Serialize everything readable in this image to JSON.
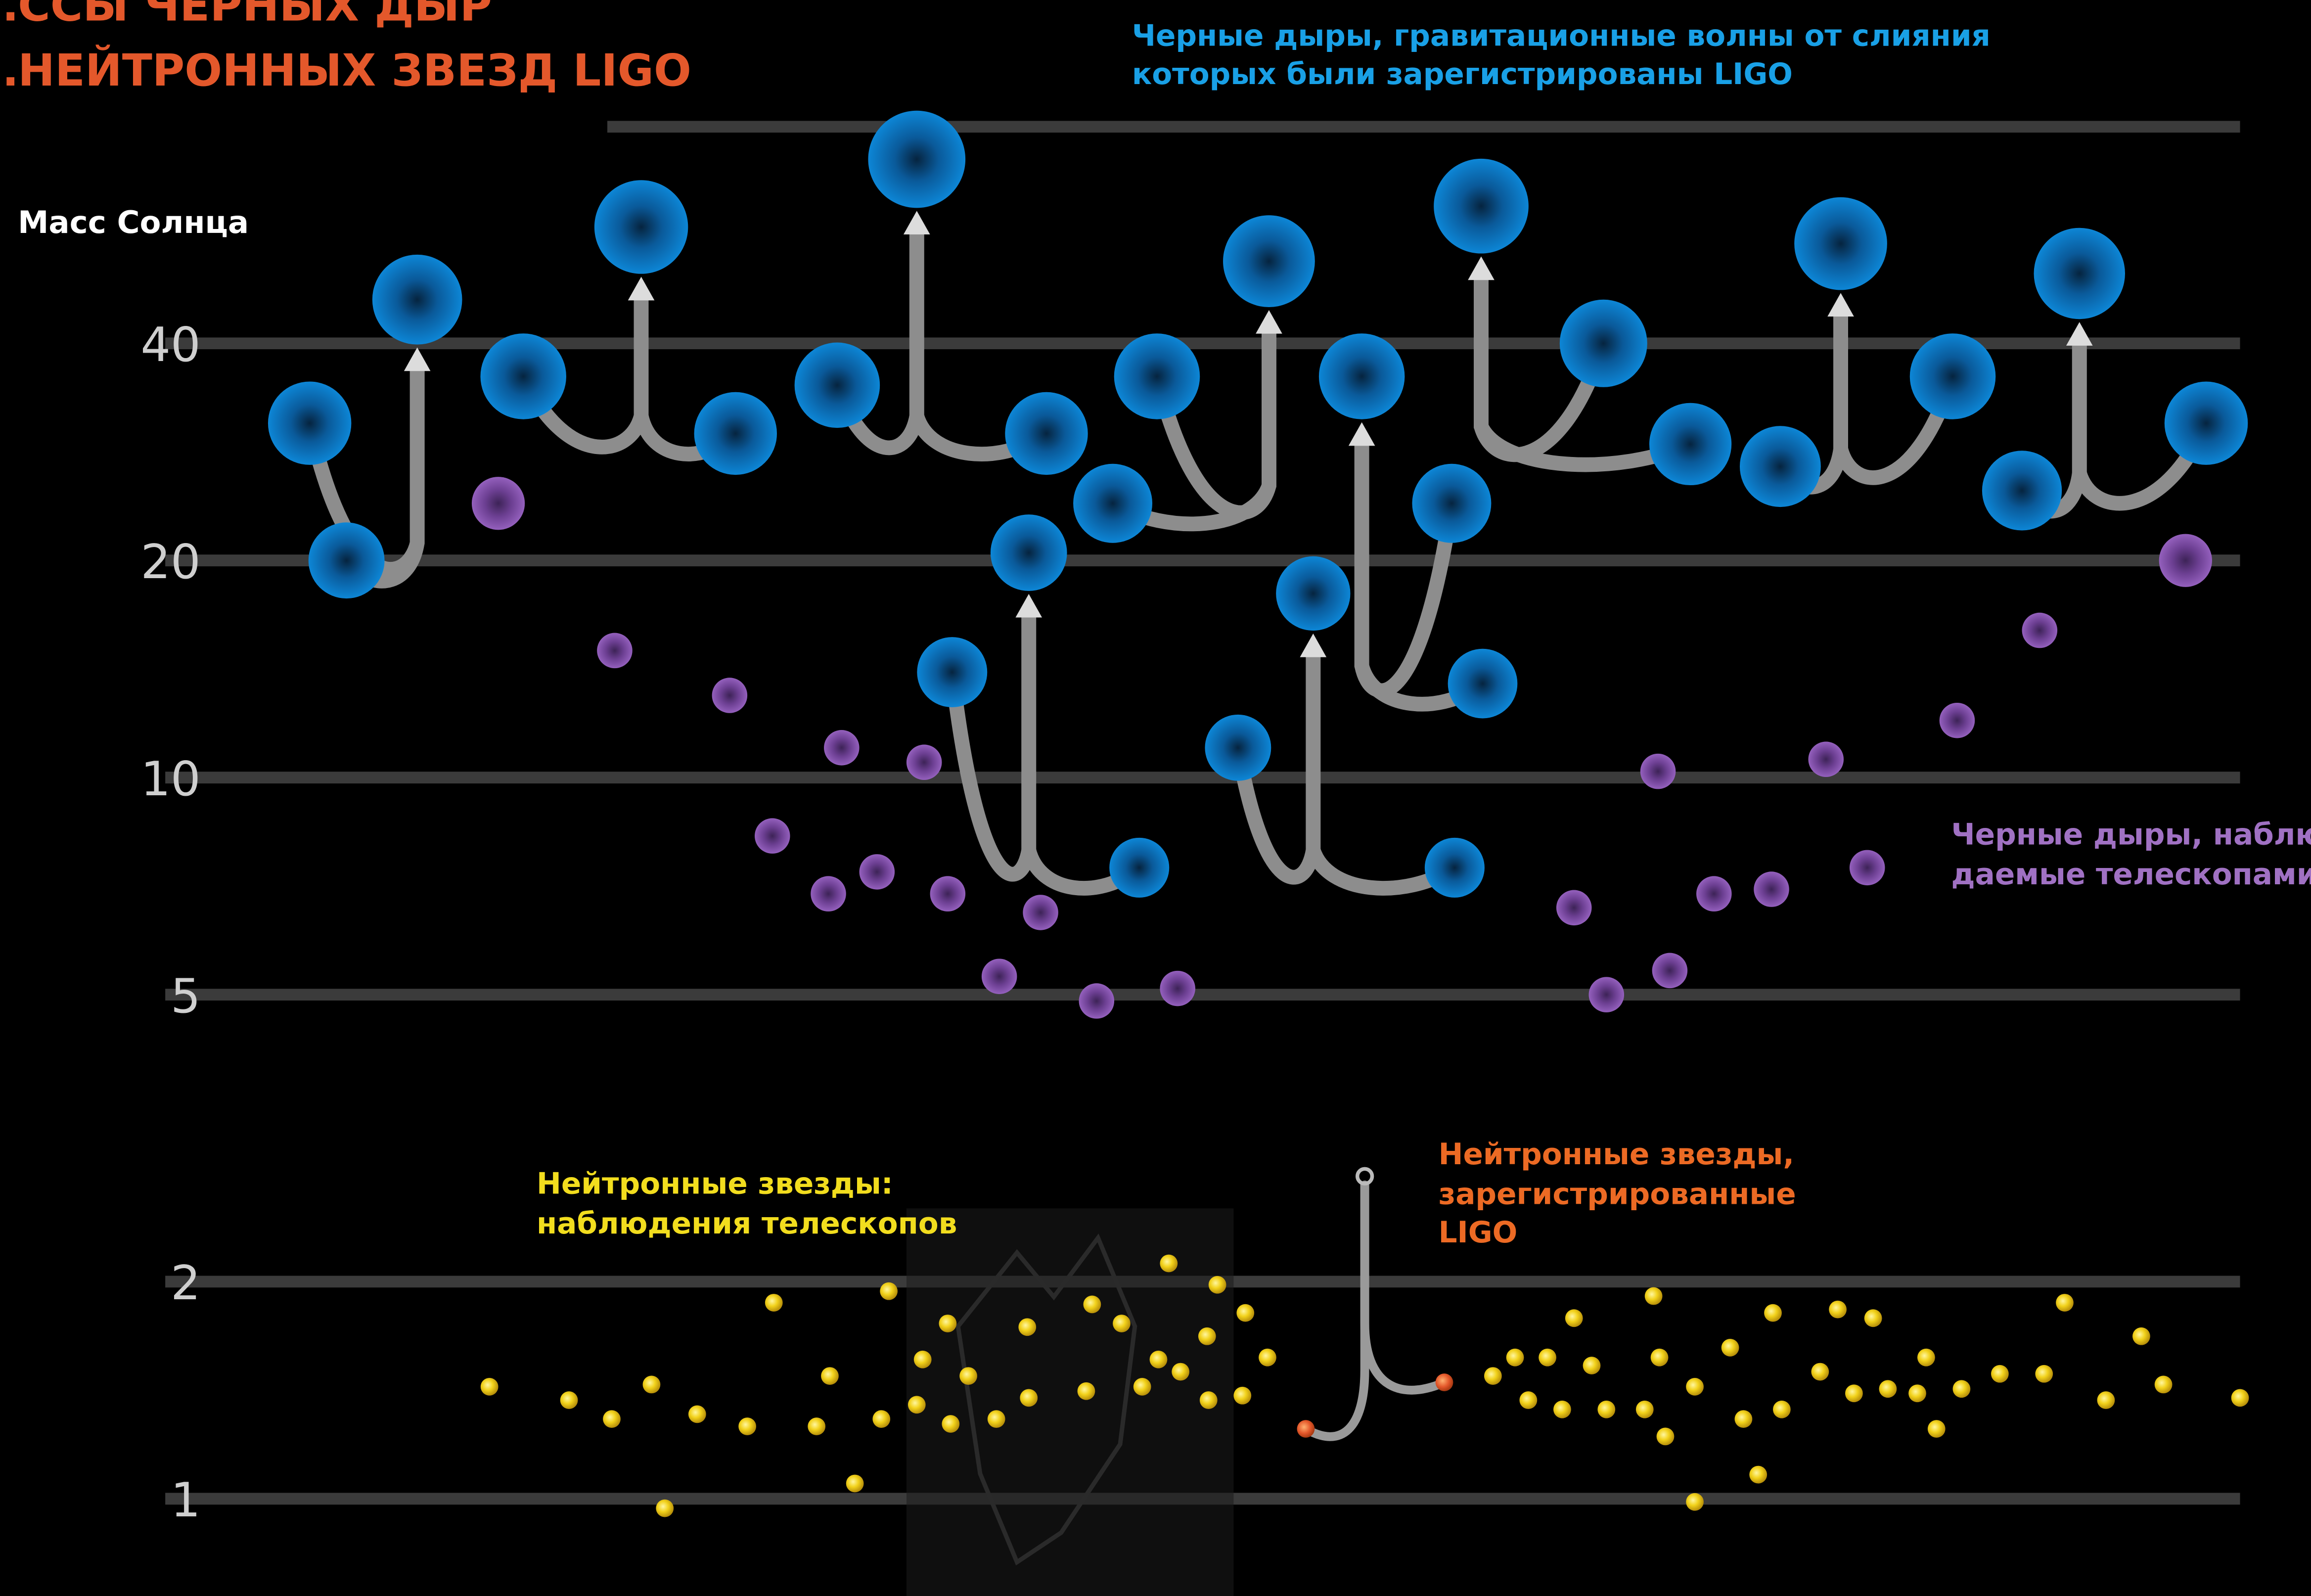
{
  "chart_data": {
    "type": "scatter",
    "title": [
      "…ССЫ ЧЕРНЫХ ДЫР",
      "…НЕЙТРОННЫХ ЗВЕЗД LIGO"
    ],
    "ylabel": "Масс Солнца",
    "yscale": "log",
    "ylim": [
      0.85,
      75
    ],
    "yticks": [
      1,
      2,
      5,
      10,
      20,
      40
    ],
    "colors": {
      "ligo_bh": "#0d7fd1",
      "telescope_bh": "#8a54b3",
      "telescope_ns": "#f2d21b",
      "ligo_ns": "#e4572a"
    },
    "annotations": {
      "ligo_bh": [
        "Черные дыры, гравитационные волны от слияния",
        "которых были зарегистрированы LIGO"
      ],
      "telescope_bh": [
        "Черные дыры, наблю-",
        "даемые телескопами"
      ],
      "telescope_ns": [
        "Нейтронные звезды:",
        "наблюдения телескопов"
      ],
      "ligo_ns": [
        "Нейтронные звезды,",
        "зарегистрированные",
        "LIGO"
      ]
    },
    "ligo_mergers": [
      {
        "components": [
          31.0,
          20.0
        ],
        "final": 46.0
      },
      {
        "components": [
          36.0,
          30.0
        ],
        "final": 58.0
      },
      {
        "components": [
          35.0,
          30.0
        ],
        "final": 72.0
      },
      {
        "components": [
          14.0,
          7.5
        ],
        "final": 20.5
      },
      {
        "components": [
          24.0,
          36.0
        ],
        "final": 52.0
      },
      {
        "components": [
          11.0,
          7.5
        ],
        "final": 18.0
      },
      {
        "components": [
          24.0,
          13.5
        ],
        "final": 36.0
      },
      {
        "components": [
          40.0,
          29.0
        ],
        "final": 62.0
      },
      {
        "components": [
          27.0,
          36.0
        ],
        "final": 55.0
      },
      {
        "components": [
          25.0,
          31.0
        ],
        "final": 50.0
      }
    ],
    "ligo_ns_merger": {
      "components": [
        1.25,
        1.45
      ],
      "final": 2.8
    },
    "telescope_bh": [
      {
        "x": 338,
        "y": 24
      },
      {
        "x": 417,
        "y": 15
      },
      {
        "x": 495,
        "y": 13
      },
      {
        "x": 524,
        "y": 8.3
      },
      {
        "x": 562,
        "y": 6.9
      },
      {
        "x": 571,
        "y": 11
      },
      {
        "x": 595,
        "y": 7.4
      },
      {
        "x": 627,
        "y": 10.5
      },
      {
        "x": 643,
        "y": 6.9
      },
      {
        "x": 678,
        "y": 5.3
      },
      {
        "x": 706,
        "y": 6.5
      },
      {
        "x": 744,
        "y": 4.9
      },
      {
        "x": 799,
        "y": 5.1
      },
      {
        "x": 1068,
        "y": 6.6
      },
      {
        "x": 1090,
        "y": 5.0
      },
      {
        "x": 1125,
        "y": 10.2
      },
      {
        "x": 1133,
        "y": 5.4
      },
      {
        "x": 1163,
        "y": 6.9
      },
      {
        "x": 1202,
        "y": 7.0
      },
      {
        "x": 1239,
        "y": 10.6
      },
      {
        "x": 1267,
        "y": 7.5
      },
      {
        "x": 1328,
        "y": 12.0
      },
      {
        "x": 1384,
        "y": 16.0
      },
      {
        "x": 1483,
        "y": 20.0
      }
    ],
    "telescope_ns": [
      {
        "x": 332,
        "y": 1.43
      },
      {
        "x": 386,
        "y": 1.37
      },
      {
        "x": 415,
        "y": 1.29
      },
      {
        "x": 442,
        "y": 1.44
      },
      {
        "x": 451,
        "y": 0.97
      },
      {
        "x": 473,
        "y": 1.31
      },
      {
        "x": 507,
        "y": 1.26
      },
      {
        "x": 525,
        "y": 1.87
      },
      {
        "x": 554,
        "y": 1.26
      },
      {
        "x": 563,
        "y": 1.48
      },
      {
        "x": 580,
        "y": 1.05
      },
      {
        "x": 598,
        "y": 1.29
      },
      {
        "x": 603,
        "y": 1.94
      },
      {
        "x": 622,
        "y": 1.35
      },
      {
        "x": 626,
        "y": 1.56
      },
      {
        "x": 643,
        "y": 1.75
      },
      {
        "x": 645,
        "y": 1.27
      },
      {
        "x": 657,
        "y": 1.48
      },
      {
        "x": 676,
        "y": 1.29
      },
      {
        "x": 697,
        "y": 1.73
      },
      {
        "x": 698,
        "y": 1.38
      },
      {
        "x": 737,
        "y": 1.41
      },
      {
        "x": 741,
        "y": 1.86
      },
      {
        "x": 761,
        "y": 1.75
      },
      {
        "x": 775,
        "y": 1.43
      },
      {
        "x": 786,
        "y": 1.56
      },
      {
        "x": 793,
        "y": 2.12
      },
      {
        "x": 801,
        "y": 1.5
      },
      {
        "x": 819,
        "y": 1.68
      },
      {
        "x": 820,
        "y": 1.37
      },
      {
        "x": 826,
        "y": 1.98
      },
      {
        "x": 843,
        "y": 1.39
      },
      {
        "x": 845,
        "y": 1.81
      },
      {
        "x": 860,
        "y": 1.57
      },
      {
        "x": 1013,
        "y": 1.48
      },
      {
        "x": 1028,
        "y": 1.57
      },
      {
        "x": 1037,
        "y": 1.37
      },
      {
        "x": 1050,
        "y": 1.57
      },
      {
        "x": 1060,
        "y": 1.33
      },
      {
        "x": 1068,
        "y": 1.78
      },
      {
        "x": 1080,
        "y": 1.53
      },
      {
        "x": 1090,
        "y": 1.33
      },
      {
        "x": 1116,
        "y": 1.33
      },
      {
        "x": 1122,
        "y": 1.91
      },
      {
        "x": 1126,
        "y": 1.57
      },
      {
        "x": 1130,
        "y": 1.22
      },
      {
        "x": 1150,
        "y": 0.99
      },
      {
        "x": 1150,
        "y": 1.43
      },
      {
        "x": 1174,
        "y": 1.62
      },
      {
        "x": 1183,
        "y": 1.29
      },
      {
        "x": 1193,
        "y": 1.08
      },
      {
        "x": 1203,
        "y": 1.81
      },
      {
        "x": 1209,
        "y": 1.33
      },
      {
        "x": 1235,
        "y": 1.5
      },
      {
        "x": 1247,
        "y": 1.83
      },
      {
        "x": 1258,
        "y": 1.4
      },
      {
        "x": 1271,
        "y": 1.78
      },
      {
        "x": 1281,
        "y": 1.42
      },
      {
        "x": 1301,
        "y": 1.4
      },
      {
        "x": 1307,
        "y": 1.57
      },
      {
        "x": 1314,
        "y": 1.25
      },
      {
        "x": 1331,
        "y": 1.42
      },
      {
        "x": 1357,
        "y": 1.49
      },
      {
        "x": 1387,
        "y": 1.49
      },
      {
        "x": 1401,
        "y": 1.87
      },
      {
        "x": 1429,
        "y": 1.37
      },
      {
        "x": 1453,
        "y": 1.68
      },
      {
        "x": 1468,
        "y": 1.44
      },
      {
        "x": 1520,
        "y": 1.38
      }
    ]
  }
}
